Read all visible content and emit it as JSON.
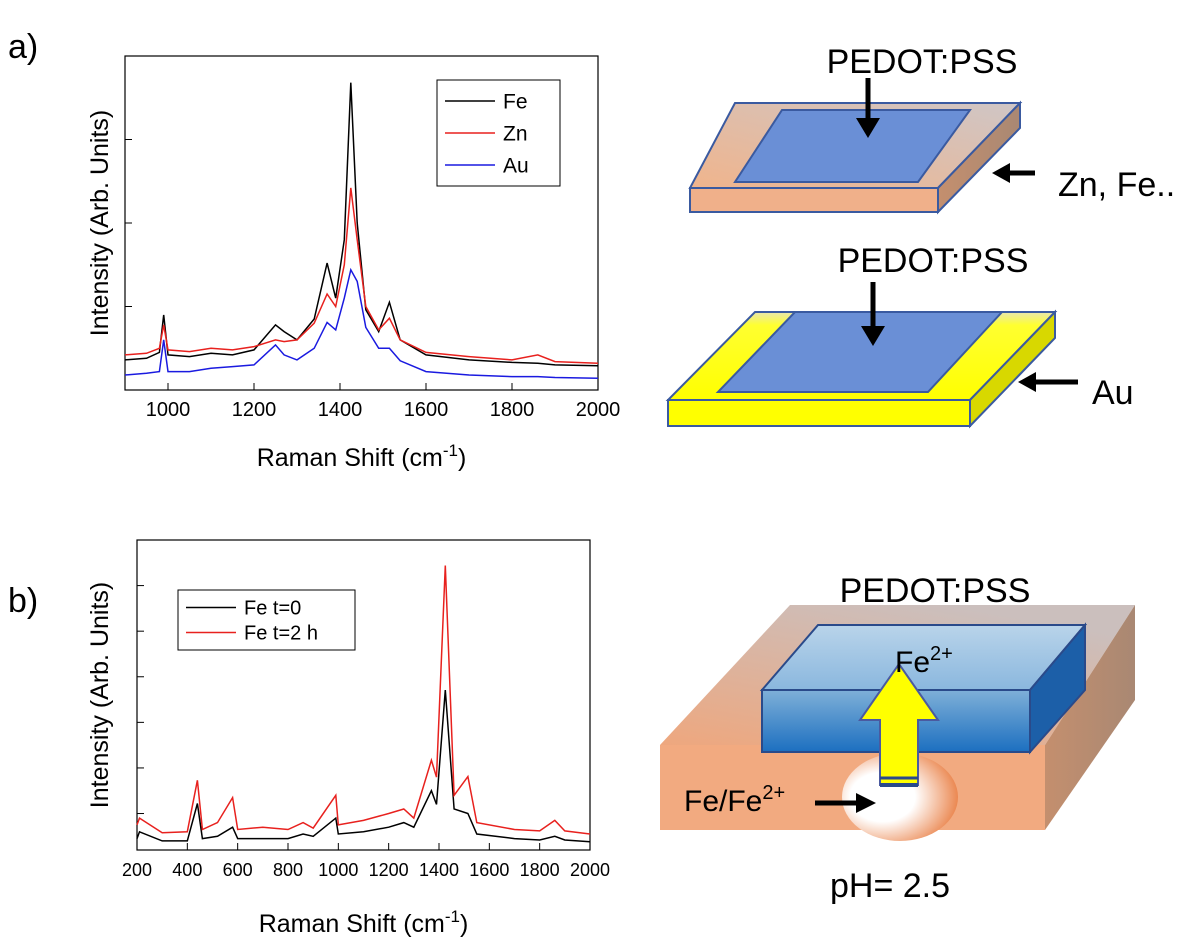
{
  "panel_labels": [
    "a)",
    "b)"
  ],
  "chart_data": [
    {
      "type": "line",
      "xlabel": [
        "Raman Shift (cm",
        "-1",
        ")"
      ],
      "ylabel": "Intensity (Arb. Units)",
      "x": [
        900,
        950,
        980,
        990,
        1000,
        1050,
        1100,
        1150,
        1200,
        1250,
        1270,
        1300,
        1340,
        1370,
        1390,
        1410,
        1425,
        1440,
        1460,
        1490,
        1515,
        1540,
        1600,
        1700,
        1800,
        1860,
        1900,
        2000
      ],
      "series": [
        {
          "name": "Fe",
          "color": "#000000",
          "values": [
            0.36,
            0.38,
            0.45,
            0.9,
            0.42,
            0.4,
            0.44,
            0.42,
            0.48,
            0.78,
            0.7,
            0.6,
            0.85,
            1.52,
            1.1,
            1.8,
            3.68,
            2.0,
            0.96,
            0.7,
            1.05,
            0.6,
            0.42,
            0.36,
            0.33,
            0.32,
            0.3,
            0.29
          ]
        },
        {
          "name": "Zn",
          "color": "#e8211e",
          "values": [
            0.42,
            0.44,
            0.5,
            0.78,
            0.48,
            0.46,
            0.5,
            0.48,
            0.52,
            0.6,
            0.58,
            0.6,
            0.8,
            1.15,
            1.0,
            1.5,
            2.42,
            1.8,
            1.0,
            0.72,
            0.86,
            0.6,
            0.45,
            0.4,
            0.36,
            0.42,
            0.34,
            0.32
          ]
        },
        {
          "name": "Au",
          "color": "#1a1ae0",
          "values": [
            0.18,
            0.2,
            0.22,
            0.6,
            0.22,
            0.22,
            0.26,
            0.28,
            0.3,
            0.54,
            0.42,
            0.36,
            0.5,
            0.81,
            0.72,
            1.1,
            1.44,
            1.3,
            0.75,
            0.5,
            0.5,
            0.35,
            0.22,
            0.18,
            0.16,
            0.16,
            0.15,
            0.14
          ]
        }
      ],
      "xlim": [
        900,
        2000
      ],
      "ylim": [
        0,
        4
      ],
      "xticks": [
        1000,
        1200,
        1400,
        1600,
        1800,
        2000
      ],
      "yticks": [
        1,
        2,
        3
      ],
      "legend": "upper right"
    },
    {
      "type": "line",
      "xlabel": [
        "Raman Shift (cm",
        "-1",
        ")"
      ],
      "ylabel": "Intensity (Arb. Units)",
      "x": [
        200,
        210,
        300,
        400,
        440,
        460,
        520,
        580,
        600,
        700,
        800,
        860,
        900,
        990,
        1000,
        1100,
        1200,
        1260,
        1300,
        1370,
        1390,
        1425,
        1460,
        1515,
        1550,
        1700,
        1800,
        1860,
        1900,
        2000
      ],
      "series": [
        {
          "name": "Fe t=0",
          "color": "#000000",
          "values": [
            0.45,
            0.6,
            0.4,
            0.4,
            1.22,
            0.45,
            0.5,
            0.7,
            0.45,
            0.45,
            0.45,
            0.55,
            0.5,
            0.9,
            0.55,
            0.6,
            0.7,
            0.8,
            0.7,
            1.5,
            1.2,
            3.71,
            1.1,
            1.0,
            0.55,
            0.45,
            0.42,
            0.5,
            0.42,
            0.38
          ]
        },
        {
          "name": "Fe t=2 h",
          "color": "#e8211e",
          "values": [
            0.75,
            0.9,
            0.58,
            0.6,
            1.73,
            0.65,
            0.8,
            1.35,
            0.65,
            0.7,
            0.65,
            0.8,
            0.68,
            1.4,
            0.75,
            0.85,
            1.0,
            1.1,
            0.9,
            2.17,
            1.8,
            6.44,
            1.4,
            1.81,
            0.8,
            0.65,
            0.62,
            0.85,
            0.62,
            0.55
          ]
        }
      ],
      "xlim": [
        200,
        2000
      ],
      "ylim": [
        0.2,
        7
      ],
      "xticks": [
        200,
        400,
        600,
        800,
        1000,
        1200,
        1400,
        1600,
        1800,
        2000
      ],
      "yticks": [
        1,
        2,
        3,
        4,
        5,
        6
      ],
      "legend": "upper left"
    }
  ],
  "diagrams": {
    "top": {
      "layer": "PEDOT:PSS",
      "substrate": "Zn, Fe.."
    },
    "middle": {
      "layer": "PEDOT:PSS",
      "substrate": "Au"
    },
    "bottom": {
      "layer": "PEDOT:PSS",
      "ion": {
        "base": "Fe",
        "sup": "2+"
      },
      "source": {
        "base": "Fe/Fe",
        "sup": "2+"
      },
      "condition": "pH= 2.5"
    }
  }
}
